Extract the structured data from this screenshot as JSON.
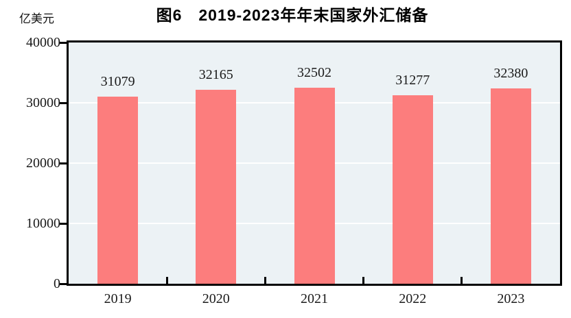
{
  "figure": {
    "title": "图6　2019-2023年年末国家外汇储备",
    "unit_label": "亿美元"
  },
  "chart_data": {
    "type": "bar",
    "title": "图6　2019-2023年年末国家外汇储备",
    "unit_label": "亿美元",
    "categories": [
      "2019",
      "2020",
      "2021",
      "2022",
      "2023"
    ],
    "values": [
      31079,
      32165,
      32502,
      31277,
      32380
    ],
    "value_labels": [
      "31079",
      "32165",
      "32502",
      "31277",
      "32380"
    ],
    "xlabel": "",
    "ylabel": "亿美元",
    "ylim": [
      0,
      40000
    ],
    "yticks": [
      0,
      10000,
      20000,
      30000,
      40000
    ],
    "ytick_labels": [
      "0",
      "10000",
      "20000",
      "30000",
      "40000"
    ],
    "grid": "horizontal-white-gridlines",
    "legend": "none",
    "colors": {
      "bar_fill": "#FC7D7D",
      "plot_background": "#ECF2F5",
      "gridline": "#FFFFFF",
      "axis_frame": "#000000",
      "label_text": "#1A1A1A",
      "title_text": "#000000"
    }
  }
}
